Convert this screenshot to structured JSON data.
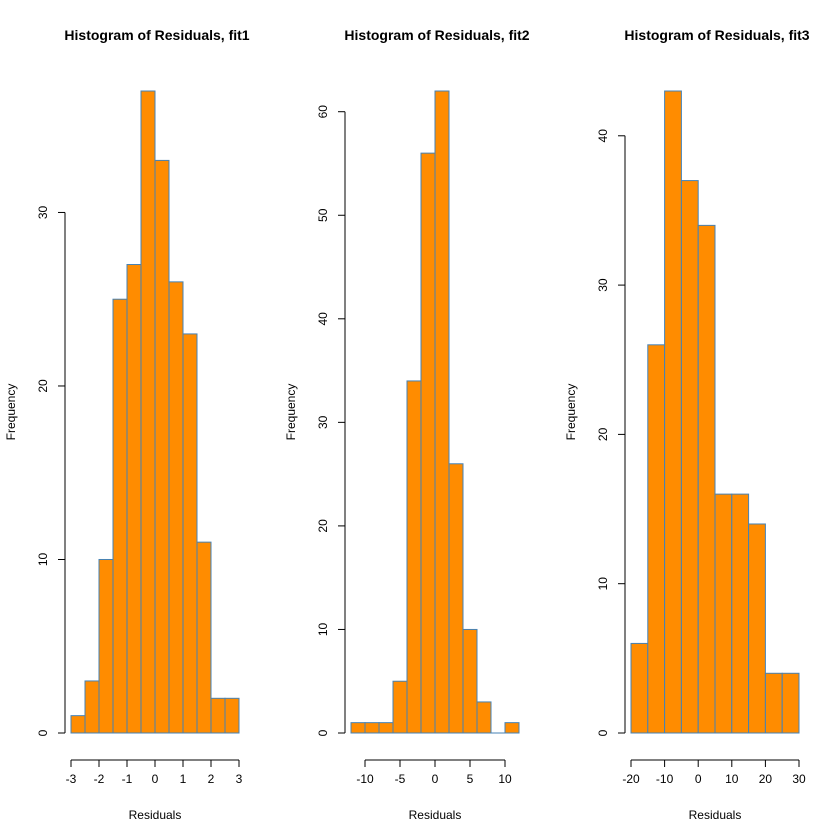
{
  "colors": {
    "bar_fill": "#ff8c00",
    "bar_stroke": "#4682b4",
    "axis": "#000000"
  },
  "chart_data": [
    {
      "type": "bar",
      "title": "Histogram of Residuals, fit1",
      "xlabel": "Residuals",
      "ylabel": "Frequency",
      "bin_edges": [
        -3,
        -2.5,
        -2,
        -1.5,
        -1,
        -0.5,
        0,
        0.5,
        1,
        1.5,
        2,
        2.5,
        3
      ],
      "values": [
        1,
        3,
        10,
        25,
        27,
        37,
        33,
        26,
        23,
        11,
        2,
        2
      ],
      "xticks": [
        -3,
        -2,
        -1,
        0,
        1,
        2,
        3
      ],
      "yticks": [
        0,
        10,
        20,
        30
      ],
      "xlim": [
        -3,
        3
      ],
      "ylim": [
        0,
        37
      ]
    },
    {
      "type": "bar",
      "title": "Histogram of Residuals, fit2",
      "xlabel": "Residuals",
      "ylabel": "Frequency",
      "bin_edges": [
        -12,
        -10,
        -8,
        -6,
        -4,
        -2,
        0,
        2,
        4,
        6,
        8,
        10,
        12
      ],
      "values": [
        1,
        1,
        1,
        5,
        34,
        56,
        62,
        26,
        10,
        3,
        0,
        1
      ],
      "xticks": [
        -10,
        -5,
        0,
        5,
        10
      ],
      "yticks": [
        0,
        10,
        20,
        30,
        40,
        50,
        60
      ],
      "xlim": [
        -12,
        12
      ],
      "ylim": [
        0,
        62
      ]
    },
    {
      "type": "bar",
      "title": "Histogram of Residuals, fit3",
      "xlabel": "Residuals",
      "ylabel": "Frequency",
      "bin_edges": [
        -20,
        -15,
        -10,
        -5,
        0,
        5,
        10,
        15,
        20,
        25,
        30
      ],
      "values": [
        6,
        26,
        43,
        37,
        34,
        16,
        16,
        14,
        4,
        4
      ],
      "xticks": [
        -20,
        -10,
        0,
        10,
        20,
        30
      ],
      "yticks": [
        0,
        10,
        20,
        30,
        40
      ],
      "xlim": [
        -20,
        30
      ],
      "ylim": [
        0,
        43
      ]
    }
  ]
}
